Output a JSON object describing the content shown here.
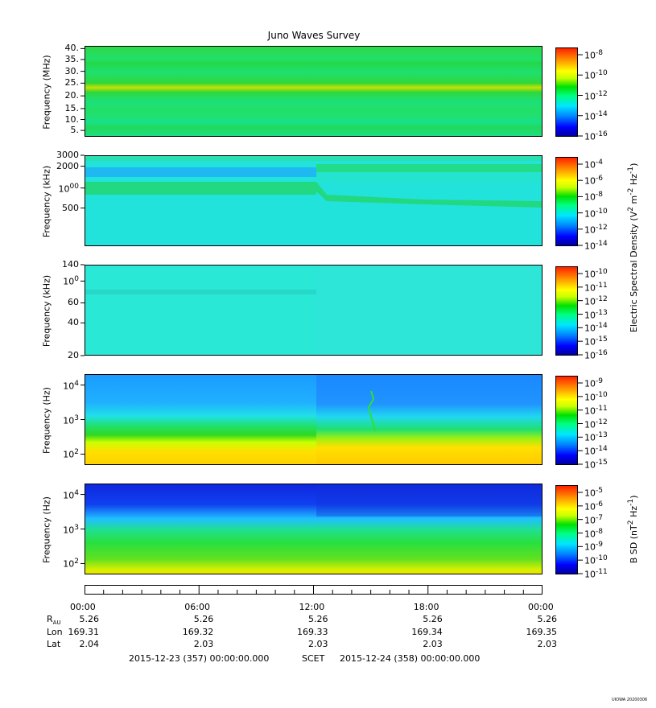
{
  "title": "Juno Waves Survey",
  "chart_data": [
    {
      "type": "heatmap",
      "ylabel": "Frequency (MHz)",
      "yticks": [
        "40.",
        "35.",
        "30.",
        "25.",
        "20.",
        "15.",
        "10.",
        "5."
      ],
      "colorbar_ticks": [
        "10-8",
        "10-10",
        "10-12",
        "10-14",
        "10-16"
      ],
      "dominant_color": "#22d84a"
    },
    {
      "type": "heatmap",
      "ylabel": "Frequency (kHz)",
      "yticks": [
        "3000",
        "2000",
        "1000",
        "500"
      ],
      "colorbar_ticks": [
        "10-4",
        "10-6",
        "10-8",
        "10-10",
        "10-12",
        "10-14"
      ],
      "dominant_color": "#22e6d8"
    },
    {
      "type": "heatmap",
      "ylabel": "Frequency (kHz)",
      "yticks": [
        "140",
        "100",
        "60",
        "40",
        "20"
      ],
      "colorbar_ticks": [
        "10-10",
        "10-11",
        "10-12",
        "10-13",
        "10-14",
        "10-15",
        "10-16"
      ],
      "dominant_color": "#2ae8d6"
    },
    {
      "type": "heatmap",
      "ylabel": "Frequency (Hz)",
      "yticks": [
        "10^4",
        "10^3",
        "10^2"
      ],
      "colorbar_ticks": [
        "10-9",
        "10-10",
        "10-11",
        "10-12",
        "10-13",
        "10-14",
        "10-15"
      ],
      "dominant_color": "#1e9cff"
    },
    {
      "type": "heatmap",
      "ylabel": "Frequency (Hz)",
      "yticks": [
        "10^4",
        "10^3",
        "10^2"
      ],
      "colorbar_ticks": [
        "10-5",
        "10-6",
        "10-7",
        "10-8",
        "10-9",
        "10-10",
        "10-11"
      ],
      "dominant_color": "#1030e0"
    }
  ],
  "colorbar_labels": {
    "electric": "Electric Spectral Density (V^2 m^-2 Hz^-1)",
    "magnetic": "B SD (nT^2 Hz^-1)"
  },
  "time_axis": {
    "ticks": [
      "00:00",
      "06:00",
      "12:00",
      "18:00",
      "00:00"
    ],
    "rows": [
      {
        "label": "R",
        "sub": "AU",
        "values": [
          "5.26",
          "5.26",
          "5.26",
          "5.26",
          "5.26"
        ]
      },
      {
        "label": "Lon",
        "values": [
          "169.31",
          "169.32",
          "169.33",
          "169.34",
          "169.35"
        ]
      },
      {
        "label": "Lat",
        "values": [
          "2.04",
          "2.03",
          "2.03",
          "2.03",
          "2.03"
        ]
      }
    ],
    "start": "2015-12-23 (357) 00:00:00.000",
    "frame": "SCET",
    "end": "2015-12-24 (358) 00:00:00.000"
  },
  "credit": "UIOWA 20200306"
}
